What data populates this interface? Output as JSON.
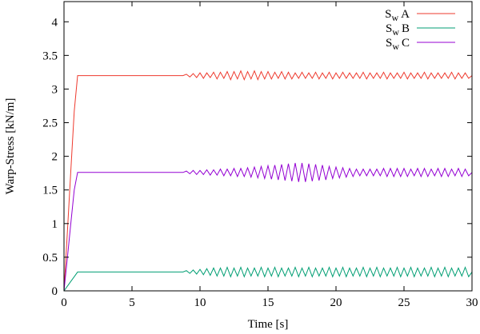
{
  "chart_data": {
    "type": "line",
    "title": "",
    "xlabel": "Time [s]",
    "ylabel": "Warp-Stress [kN/m]",
    "xlim": [
      0,
      30
    ],
    "ylim": [
      0,
      4.3
    ],
    "xticks": [
      0,
      5,
      10,
      15,
      20,
      25,
      30
    ],
    "yticks": [
      0,
      0.5,
      1,
      1.5,
      2,
      2.5,
      3,
      3.5,
      4
    ],
    "xtick_labels": [
      "0",
      "5",
      "10",
      "15",
      "20",
      "25",
      "30"
    ],
    "ytick_labels": [
      "0",
      "0.5",
      "1",
      "1.5",
      "2",
      "2.5",
      "3",
      "3.5",
      "4"
    ],
    "grid": false,
    "legend_position": "top-right",
    "x": [
      0,
      0.25,
      0.5,
      0.75,
      1,
      1.25,
      1.5,
      1.75,
      2,
      2.25,
      2.5,
      2.75,
      3,
      3.25,
      3.5,
      3.75,
      4,
      4.25,
      4.5,
      4.75,
      5,
      5.25,
      5.5,
      5.75,
      6,
      6.25,
      6.5,
      6.75,
      7,
      7.25,
      7.5,
      7.75,
      8,
      8.25,
      8.5,
      8.75,
      9,
      9.25,
      9.5,
      9.75,
      10,
      10.25,
      10.5,
      10.75,
      11,
      11.25,
      11.5,
      11.75,
      12,
      12.25,
      12.5,
      12.75,
      13,
      13.25,
      13.5,
      13.75,
      14,
      14.25,
      14.5,
      14.75,
      15,
      15.25,
      15.5,
      15.75,
      16,
      16.25,
      16.5,
      16.75,
      17,
      17.25,
      17.5,
      17.75,
      18,
      18.25,
      18.5,
      18.75,
      19,
      19.25,
      19.5,
      19.75,
      20,
      20.25,
      20.5,
      20.75,
      21,
      21.25,
      21.5,
      21.75,
      22,
      22.25,
      22.5,
      22.75,
      23,
      23.25,
      23.5,
      23.75,
      24,
      24.25,
      24.5,
      24.75,
      25,
      25.25,
      25.5,
      25.75,
      26,
      26.25,
      26.5,
      26.75,
      27,
      27.25,
      27.5,
      27.75,
      28,
      28.25,
      28.5,
      28.75,
      29,
      29.25,
      29.5,
      29.75,
      30
    ],
    "series": [
      {
        "name": "S_w A",
        "legend_main": "S",
        "legend_sub": "w",
        "legend_suffix": "A",
        "color": "#ee3a2e",
        "values": [
          0,
          0.89,
          1.78,
          2.67,
          3.2,
          3.2,
          3.2,
          3.2,
          3.2,
          3.2,
          3.2,
          3.2,
          3.2,
          3.2,
          3.2,
          3.2,
          3.2,
          3.2,
          3.2,
          3.2,
          3.2,
          3.2,
          3.2,
          3.2,
          3.2,
          3.2,
          3.2,
          3.2,
          3.2,
          3.2,
          3.2,
          3.2,
          3.2,
          3.2,
          3.2,
          3.2,
          3.22,
          3.18,
          3.23,
          3.17,
          3.24,
          3.16,
          3.24,
          3.17,
          3.25,
          3.15,
          3.25,
          3.16,
          3.26,
          3.14,
          3.26,
          3.15,
          3.27,
          3.14,
          3.26,
          3.15,
          3.27,
          3.14,
          3.26,
          3.15,
          3.26,
          3.15,
          3.25,
          3.16,
          3.26,
          3.15,
          3.25,
          3.15,
          3.24,
          3.16,
          3.25,
          3.16,
          3.24,
          3.16,
          3.25,
          3.15,
          3.24,
          3.16,
          3.25,
          3.15,
          3.24,
          3.16,
          3.25,
          3.16,
          3.24,
          3.16,
          3.24,
          3.16,
          3.25,
          3.15,
          3.24,
          3.16,
          3.24,
          3.16,
          3.25,
          3.15,
          3.24,
          3.16,
          3.24,
          3.16,
          3.25,
          3.15,
          3.24,
          3.16,
          3.24,
          3.16,
          3.25,
          3.15,
          3.24,
          3.16,
          3.24,
          3.16,
          3.24,
          3.16,
          3.25,
          3.15,
          3.24,
          3.16,
          3.24,
          3.16,
          3.2
        ]
      },
      {
        "name": "S_w B",
        "legend_main": "S",
        "legend_sub": "w",
        "legend_suffix": "B",
        "color": "#009e73",
        "values": [
          0,
          0.07,
          0.14,
          0.21,
          0.28,
          0.28,
          0.28,
          0.28,
          0.28,
          0.28,
          0.28,
          0.28,
          0.28,
          0.28,
          0.28,
          0.28,
          0.28,
          0.28,
          0.28,
          0.28,
          0.28,
          0.28,
          0.28,
          0.28,
          0.28,
          0.28,
          0.28,
          0.28,
          0.28,
          0.28,
          0.28,
          0.28,
          0.28,
          0.28,
          0.28,
          0.28,
          0.3,
          0.26,
          0.31,
          0.25,
          0.32,
          0.24,
          0.33,
          0.23,
          0.34,
          0.22,
          0.34,
          0.22,
          0.35,
          0.21,
          0.34,
          0.22,
          0.35,
          0.21,
          0.34,
          0.22,
          0.34,
          0.22,
          0.35,
          0.21,
          0.34,
          0.22,
          0.35,
          0.21,
          0.34,
          0.22,
          0.34,
          0.22,
          0.35,
          0.21,
          0.34,
          0.22,
          0.35,
          0.21,
          0.34,
          0.22,
          0.34,
          0.22,
          0.35,
          0.21,
          0.34,
          0.22,
          0.35,
          0.21,
          0.34,
          0.22,
          0.34,
          0.22,
          0.35,
          0.21,
          0.34,
          0.22,
          0.35,
          0.21,
          0.34,
          0.22,
          0.34,
          0.22,
          0.35,
          0.21,
          0.34,
          0.22,
          0.35,
          0.21,
          0.34,
          0.22,
          0.34,
          0.22,
          0.35,
          0.21,
          0.34,
          0.22,
          0.35,
          0.21,
          0.34,
          0.22,
          0.34,
          0.22,
          0.35,
          0.21,
          0.28
        ]
      },
      {
        "name": "S_w C",
        "legend_main": "S",
        "legend_sub": "w",
        "legend_suffix": "C",
        "color": "#9400d3",
        "values": [
          0,
          0.5,
          1.0,
          1.5,
          1.76,
          1.76,
          1.76,
          1.76,
          1.76,
          1.76,
          1.76,
          1.76,
          1.76,
          1.76,
          1.76,
          1.76,
          1.76,
          1.76,
          1.76,
          1.76,
          1.76,
          1.76,
          1.76,
          1.76,
          1.76,
          1.76,
          1.76,
          1.76,
          1.76,
          1.76,
          1.76,
          1.76,
          1.76,
          1.76,
          1.76,
          1.76,
          1.78,
          1.74,
          1.79,
          1.73,
          1.79,
          1.73,
          1.8,
          1.72,
          1.8,
          1.72,
          1.81,
          1.71,
          1.81,
          1.71,
          1.82,
          1.7,
          1.82,
          1.7,
          1.83,
          1.69,
          1.84,
          1.68,
          1.85,
          1.67,
          1.86,
          1.66,
          1.87,
          1.65,
          1.88,
          1.64,
          1.89,
          1.63,
          1.9,
          1.62,
          1.9,
          1.62,
          1.89,
          1.63,
          1.88,
          1.64,
          1.87,
          1.65,
          1.85,
          1.67,
          1.84,
          1.68,
          1.83,
          1.69,
          1.82,
          1.7,
          1.81,
          1.71,
          1.81,
          1.71,
          1.81,
          1.71,
          1.81,
          1.71,
          1.82,
          1.7,
          1.82,
          1.7,
          1.82,
          1.7,
          1.82,
          1.7,
          1.81,
          1.71,
          1.82,
          1.7,
          1.82,
          1.7,
          1.81,
          1.71,
          1.82,
          1.7,
          1.82,
          1.7,
          1.81,
          1.71,
          1.82,
          1.7,
          1.81,
          1.71,
          1.76
        ]
      }
    ]
  }
}
